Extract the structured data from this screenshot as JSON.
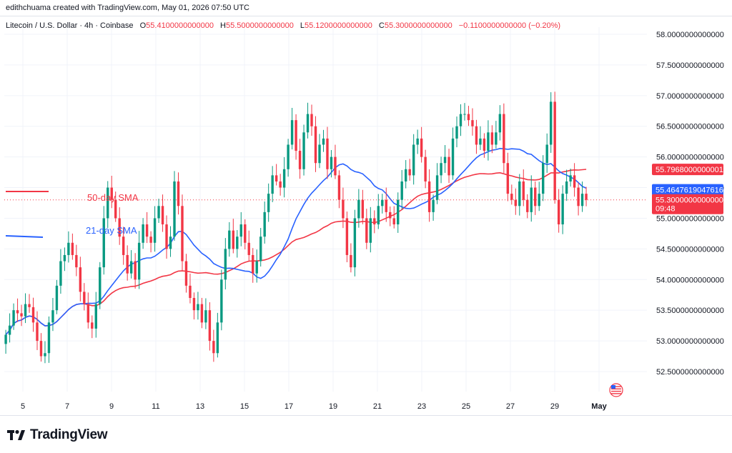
{
  "attribution": "edithchuama created with TradingView.com, May 01, 2026 07:50 UTC",
  "legend": {
    "symbol": "Litecoin / U.S. Dollar · 4h · Coinbase",
    "open_label": "O",
    "open": "55.4100000000000",
    "high_label": "H",
    "high": "55.5000000000000",
    "low_label": "L",
    "low": "55.1200000000000",
    "close_label": "C",
    "close": "55.3000000000000",
    "change": "−0.1100000000000 (−0.20%)"
  },
  "brand": {
    "name": "TradingView"
  },
  "icons": {
    "logo": "tradingview-logo-icon",
    "flag": "us-flag-icon"
  },
  "colors": {
    "up": "#089981",
    "down": "#f23645",
    "sma50": "#f23645",
    "sma21": "#2962ff",
    "grid": "#f0f3fa",
    "axis_text": "#131722"
  },
  "chart_data": {
    "type": "candlestick",
    "title": "Litecoin / U.S. Dollar · 4h · Coinbase",
    "ylim": [
      52.1,
      58.3
    ],
    "y_ticks": [
      "58.0000000000000",
      "57.5000000000000",
      "57.0000000000000",
      "56.5000000000000",
      "56.0000000000000",
      "55.5000000000000",
      "55.0000000000000",
      "54.5000000000000",
      "54.0000000000000",
      "53.5000000000000",
      "53.0000000000000",
      "52.5000000000000"
    ],
    "x_ticks": [
      {
        "label": "5",
        "day": 5
      },
      {
        "label": "7",
        "day": 7
      },
      {
        "label": "9",
        "day": 9
      },
      {
        "label": "11",
        "day": 11
      },
      {
        "label": "13",
        "day": 13
      },
      {
        "label": "15",
        "day": 15
      },
      {
        "label": "17",
        "day": 17
      },
      {
        "label": "19",
        "day": 19
      },
      {
        "label": "21",
        "day": 21
      },
      {
        "label": "23",
        "day": 23
      },
      {
        "label": "25",
        "day": 25
      },
      {
        "label": "27",
        "day": 27
      },
      {
        "label": "29",
        "day": 29
      },
      {
        "label": "May",
        "day": 31
      }
    ],
    "start_day": 4.1,
    "bars_per_day": 6,
    "series_names": {
      "sma50": "50-day SMA",
      "sma21": "21-day SMA"
    },
    "last_price": {
      "value": 55.3,
      "label": "55.3000000000000",
      "countdown": "09:48"
    },
    "sma50_last": {
      "value": 55.7968,
      "label": "55.7968000000001"
    },
    "sma21_last": {
      "value": 55.4648,
      "label": "55.4647619047616"
    },
    "closes": [
      53.1,
      53.25,
      53.5,
      53.45,
      53.4,
      53.6,
      53.55,
      53.3,
      53.0,
      52.75,
      52.8,
      53.3,
      53.5,
      53.9,
      54.3,
      54.4,
      54.6,
      54.4,
      54.2,
      53.8,
      53.6,
      53.3,
      53.2,
      53.6,
      54.2,
      55.0,
      55.5,
      55.3,
      55.0,
      54.7,
      54.4,
      54.1,
      54.3,
      54.0,
      54.6,
      54.9,
      54.7,
      54.6,
      55.0,
      55.2,
      54.9,
      54.5,
      54.7,
      55.6,
      55.2,
      54.3,
      53.9,
      53.7,
      53.5,
      53.6,
      53.3,
      53.5,
      53.0,
      52.8,
      53.3,
      54.0,
      54.5,
      54.8,
      54.5,
      54.7,
      54.9,
      54.6,
      54.4,
      54.1,
      54.3,
      54.7,
      55.1,
      55.4,
      55.7,
      55.6,
      55.5,
      55.8,
      56.2,
      56.6,
      56.1,
      55.8,
      56.4,
      56.7,
      56.5,
      55.9,
      56.2,
      56.3,
      55.8,
      56.0,
      55.7,
      55.3,
      55.0,
      54.4,
      54.2,
      55.0,
      55.3,
      55.0,
      54.6,
      55.0,
      54.9,
      55.2,
      55.3,
      55.1,
      55.0,
      54.9,
      55.3,
      55.6,
      55.8,
      55.7,
      56.2,
      56.3,
      56.0,
      55.6,
      55.1,
      55.3,
      55.7,
      55.9,
      56.0,
      55.7,
      56.3,
      56.5,
      56.7,
      56.7,
      56.6,
      56.5,
      56.2,
      56.3,
      56.1,
      56.4,
      56.2,
      56.4,
      56.7,
      55.9,
      55.4,
      55.3,
      55.2,
      55.6,
      55.3,
      55.1,
      55.5,
      55.2,
      55.4,
      55.9,
      56.2,
      56.9,
      55.3,
      54.9,
      55.4,
      55.6,
      55.7,
      55.5,
      55.2,
      55.4,
      55.3
    ]
  }
}
